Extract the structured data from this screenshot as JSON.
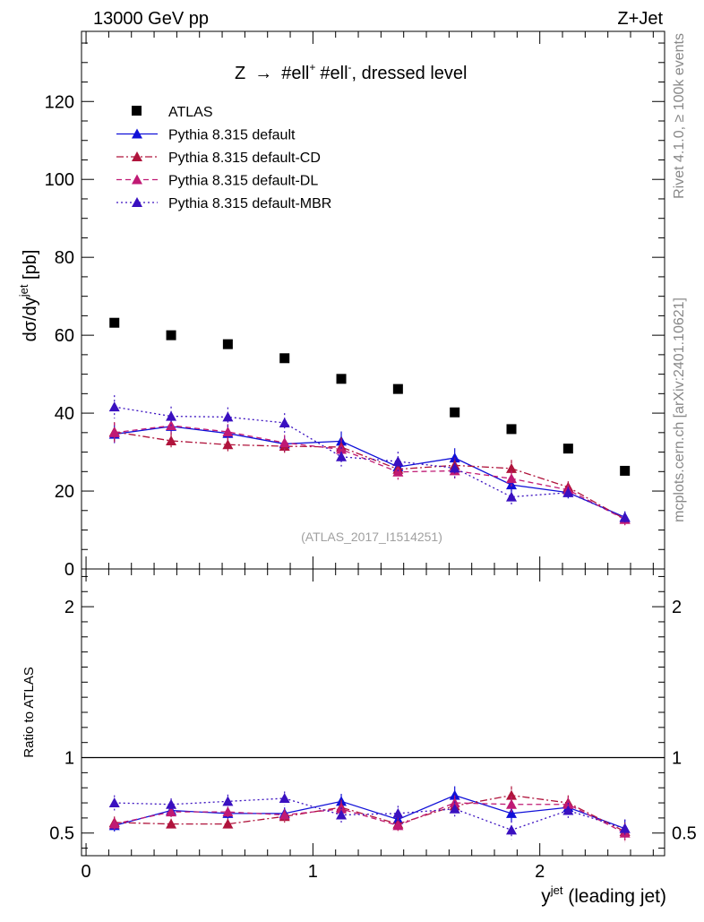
{
  "header": {
    "energy_label": "13000 GeV pp",
    "process_label": "Z+Jet"
  },
  "side_labels": {
    "rivet": "Rivet 4.1.0, ≥ 100k events",
    "source": "mcplots.cern.ch [arXiv:2401.10621]"
  },
  "chart_data": [
    {
      "type": "scatter",
      "panel": "main",
      "title": "Z → #ell⁺ #ell⁻, dressed level",
      "title_parts": {
        "z": "Z",
        "arrow": "→",
        "ell1": "#ell",
        "sup1": "+",
        "ell2": "#ell",
        "sup2": "-",
        "rest": ", dressed level"
      },
      "ylabel": "dσ/dy^jet [pb]",
      "ylabel_parts": {
        "base": "dσ/dy",
        "sup": "jet",
        "unit": "[pb]"
      },
      "watermark": "(ATLAS_2017_I1514251)",
      "xlim": [
        -0.02,
        2.55
      ],
      "ylim": [
        0,
        138
      ],
      "yticks": [
        0,
        20,
        40,
        60,
        80,
        100,
        120
      ],
      "ytick_labels": [
        "0",
        "20",
        "40",
        "60",
        "80",
        "100",
        "120"
      ],
      "legend_position": "top-left",
      "x": [
        0.125,
        0.375,
        0.625,
        0.875,
        1.125,
        1.375,
        1.625,
        1.875,
        2.125,
        2.375
      ],
      "series": [
        {
          "name": "ATLAS",
          "color": "#000000",
          "marker": "square",
          "line": "none",
          "values": [
            63.2,
            60.0,
            57.7,
            54.1,
            48.8,
            46.2,
            40.2,
            35.9,
            30.9,
            25.2
          ],
          "errors": [
            0,
            0,
            0,
            0,
            0,
            0,
            0,
            0,
            0,
            0
          ]
        },
        {
          "name": "Pythia 8.315 default",
          "color": "#1010d8",
          "marker": "triangle",
          "line": "solid",
          "values": [
            34.6,
            36.6,
            34.8,
            32.1,
            32.8,
            26.2,
            28.5,
            21.6,
            19.6,
            13.3
          ],
          "errors": [
            2.3,
            2.0,
            2.2,
            2.0,
            2.5,
            2.0,
            2.5,
            2.0,
            1.5,
            1.5
          ]
        },
        {
          "name": "Pythia 8.315 default-CD",
          "color": "#b0143c",
          "marker": "triangle",
          "line": "dashdot",
          "values": [
            35.2,
            32.9,
            31.9,
            31.5,
            31.3,
            25.6,
            26.6,
            25.8,
            21.0,
            12.8
          ],
          "errors": [
            2.5,
            2.0,
            2.0,
            2.0,
            2.5,
            2.0,
            2.0,
            2.2,
            1.5,
            1.5
          ]
        },
        {
          "name": "Pythia 8.315 default-DL",
          "color": "#c01a74",
          "marker": "triangle",
          "line": "dashed",
          "values": [
            35.0,
            36.8,
            35.2,
            32.4,
            30.7,
            24.9,
            25.2,
            23.2,
            20.3,
            12.7
          ],
          "errors": [
            2.5,
            2.0,
            2.0,
            2.0,
            2.5,
            2.0,
            2.0,
            2.0,
            1.5,
            1.5
          ]
        },
        {
          "name": "Pythia 8.315 default-MBR",
          "color": "#3a10c0",
          "marker": "triangle",
          "line": "dotted",
          "values": [
            41.6,
            39.2,
            39.0,
            37.5,
            28.8,
            27.6,
            25.9,
            18.5,
            19.6,
            13.2
          ],
          "errors": [
            3.0,
            2.5,
            2.5,
            2.5,
            2.5,
            2.5,
            2.5,
            2.0,
            1.5,
            1.5
          ]
        }
      ]
    },
    {
      "type": "scatter",
      "panel": "ratio",
      "ylabel": "Ratio to ATLAS",
      "xlabel": "y^jet (leading jet)",
      "xlabel_parts": {
        "base": "y",
        "sup": "jet",
        "rest": " (leading jet)"
      },
      "xlim": [
        -0.02,
        2.55
      ],
      "ylim": [
        0.35,
        2.25
      ],
      "xticks": [
        0,
        1,
        2
      ],
      "xtick_labels": [
        "0",
        "1",
        "2"
      ],
      "yticks": [
        0.5,
        1,
        2
      ],
      "ytick_labels": [
        "0.5",
        "1",
        "2"
      ],
      "reference_line": 1,
      "x": [
        0.125,
        0.375,
        0.625,
        0.875,
        1.125,
        1.375,
        1.625,
        1.875,
        2.125,
        2.375
      ],
      "series": [
        {
          "name": "Pythia 8.315 default",
          "color": "#1010d8",
          "marker": "triangle",
          "line": "solid",
          "values": [
            0.55,
            0.65,
            0.63,
            0.63,
            0.71,
            0.59,
            0.75,
            0.63,
            0.67,
            0.53
          ],
          "errors": [
            0.04,
            0.035,
            0.035,
            0.04,
            0.05,
            0.045,
            0.06,
            0.055,
            0.05,
            0.06
          ]
        },
        {
          "name": "Pythia 8.315 default-CD",
          "color": "#b0143c",
          "marker": "triangle",
          "line": "dashdot",
          "values": [
            0.57,
            0.56,
            0.56,
            0.61,
            0.67,
            0.56,
            0.68,
            0.75,
            0.7,
            0.51
          ],
          "errors": [
            0.04,
            0.035,
            0.035,
            0.04,
            0.05,
            0.045,
            0.05,
            0.06,
            0.05,
            0.06
          ]
        },
        {
          "name": "Pythia 8.315 default-DL",
          "color": "#c01a74",
          "marker": "triangle",
          "line": "dashed",
          "values": [
            0.56,
            0.64,
            0.64,
            0.62,
            0.66,
            0.55,
            0.7,
            0.69,
            0.69,
            0.5
          ],
          "errors": [
            0.04,
            0.035,
            0.035,
            0.04,
            0.05,
            0.045,
            0.05,
            0.055,
            0.05,
            0.06
          ]
        },
        {
          "name": "Pythia 8.315 default-MBR",
          "color": "#3a10c0",
          "marker": "triangle",
          "line": "dotted",
          "values": [
            0.7,
            0.69,
            0.71,
            0.73,
            0.62,
            0.63,
            0.66,
            0.52,
            0.65,
            0.53
          ],
          "errors": [
            0.05,
            0.04,
            0.045,
            0.045,
            0.05,
            0.05,
            0.05,
            0.06,
            0.05,
            0.06
          ]
        }
      ]
    }
  ]
}
